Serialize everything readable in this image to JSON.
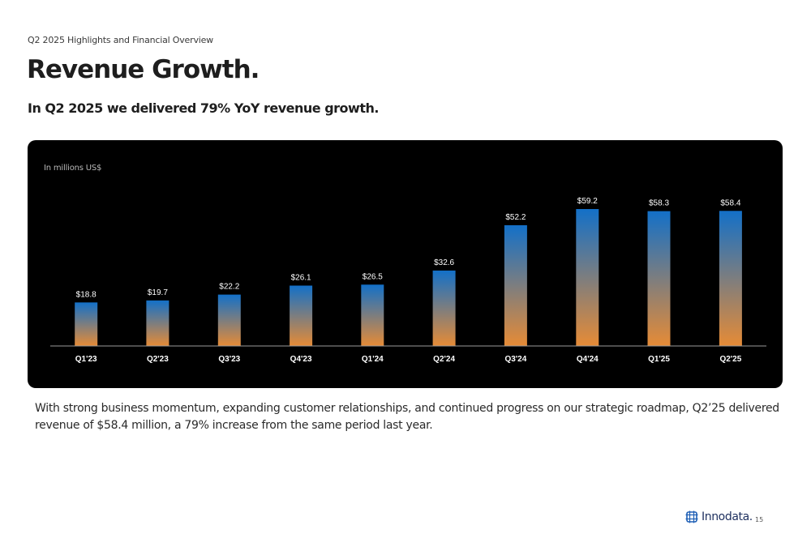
{
  "header": {
    "eyebrow": "Q2 2025 Highlights and Financial Overview",
    "title": "Revenue Growth.",
    "subtitle": "In Q2 2025 we delivered 79% YoY revenue growth."
  },
  "chart_data": {
    "type": "bar",
    "unit_label": "In millions US$",
    "categories": [
      "Q1'23",
      "Q2'23",
      "Q3'23",
      "Q4'23",
      "Q1'24",
      "Q2'24",
      "Q3'24",
      "Q4'24",
      "Q1'25",
      "Q2'25"
    ],
    "values": [
      18.8,
      19.7,
      22.2,
      26.1,
      26.5,
      32.6,
      52.2,
      59.2,
      58.3,
      58.4
    ],
    "data_labels": [
      "$18.8",
      "$19.7",
      "$22.2",
      "$26.1",
      "$26.5",
      "$32.6",
      "$52.2",
      "$59.2",
      "$58.3",
      "$58.4"
    ],
    "ylim": [
      0,
      59.2
    ],
    "grid": false,
    "colors": {
      "gradient_top": "#1370c8",
      "gradient_bottom": "#e68b36",
      "background": "#000000",
      "text": "#ffffff"
    }
  },
  "body": {
    "text": "With strong business momentum, expanding customer relationships, and continued progress on our strategic roadmap, Q2’25 delivered revenue of $58.4 million, a 79% increase from the same period last year."
  },
  "footer": {
    "logo_text": "Innodata.",
    "logo_icon": "innodata-logo-icon",
    "page_number": "15"
  }
}
